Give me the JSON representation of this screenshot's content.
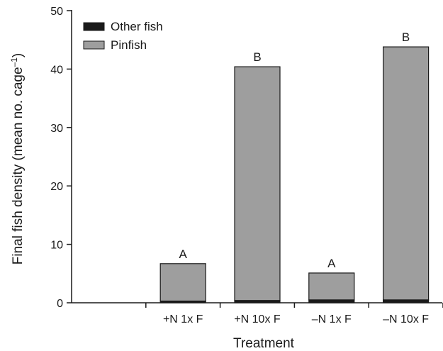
{
  "chart_data": {
    "type": "bar",
    "stacked": true,
    "categories": [
      "+N 1x F",
      "+N 10x F",
      "–N 1x F",
      "–N 10x F"
    ],
    "series": [
      {
        "name": "Other fish",
        "values": [
          0.3,
          0.4,
          0.5,
          0.5
        ],
        "color": "#1a1a1a"
      },
      {
        "name": "Pinfish",
        "values": [
          6.4,
          40.0,
          4.6,
          43.3
        ],
        "color": "#9e9e9e"
      }
    ],
    "significance_labels": [
      "A",
      "B",
      "A",
      "B"
    ],
    "xlabel": "Treatment",
    "ylabel": "Final fish density (mean no. cage",
    "ylabel_superscript": "–1",
    "ylabel_suffix": ")",
    "ylim": [
      0,
      50
    ],
    "yticks": [
      0,
      10,
      20,
      30,
      40,
      50
    ],
    "grid": false,
    "legend_position": "top-left"
  }
}
